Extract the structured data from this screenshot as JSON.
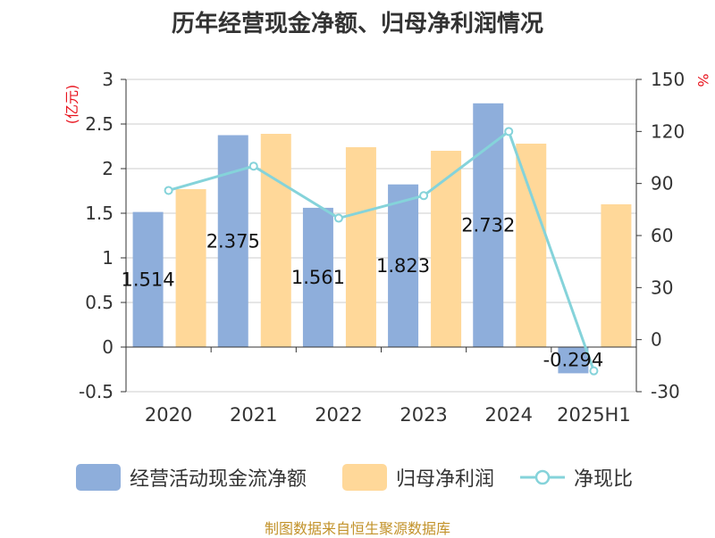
{
  "title": "历年经营现金净额、归母净利润情况",
  "source": "制图数据来自恒生聚源数据库",
  "colors": {
    "cash_flow_bar": "#8eaedb",
    "net_profit_bar": "#ffd899",
    "ratio_line": "#85d3da",
    "axis_unit": "#e8141e",
    "source_text": "#c2922a"
  },
  "chart_data": {
    "type": "bar",
    "categories": [
      "2020",
      "2021",
      "2022",
      "2023",
      "2024",
      "2025H1"
    ],
    "y_left": {
      "label": "(亿元)",
      "ylim": [
        -0.5,
        3
      ],
      "ticks": [
        "-0.5",
        "0",
        "0.5",
        "1",
        "1.5",
        "2",
        "2.5",
        "3"
      ]
    },
    "y_right": {
      "label": "%",
      "ylim": [
        -30,
        150
      ],
      "ticks": [
        "-30",
        "0",
        "30",
        "60",
        "90",
        "120",
        "150"
      ]
    },
    "grid": true,
    "legend_position": "bottom",
    "series": [
      {
        "name": "经营活动现金流净额",
        "type": "bar",
        "axis": "left",
        "values": [
          1.514,
          2.375,
          1.561,
          1.823,
          2.732,
          -0.294
        ],
        "data_labels": [
          "1.514",
          "2.375",
          "1.561",
          "1.823",
          "2.732",
          "-0.294"
        ]
      },
      {
        "name": "归母净利润",
        "type": "bar",
        "axis": "left",
        "values": [
          1.77,
          2.39,
          2.24,
          2.2,
          2.28,
          1.6
        ]
      },
      {
        "name": "净现比",
        "type": "line",
        "axis": "right",
        "values": [
          86,
          100,
          70,
          83,
          120,
          -18
        ]
      }
    ]
  }
}
